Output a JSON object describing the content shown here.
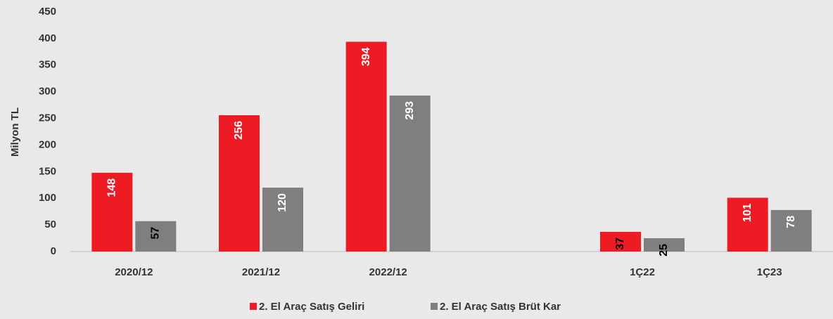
{
  "chart_data": {
    "type": "bar",
    "y_label": "Milyon TL",
    "categories": [
      "2020/12",
      "2021/12",
      "2022/12",
      null,
      "1Ç22",
      "1Ç23"
    ],
    "series": [
      {
        "name": "2. El Araç Satış Geliri",
        "color": "#ed1c24",
        "values": [
          148,
          256,
          394,
          null,
          37,
          101
        ]
      },
      {
        "name": "2. El Araç Satış Brüt Kar",
        "color": "#7f7f7f",
        "values": [
          57,
          120,
          293,
          null,
          25,
          78
        ]
      }
    ],
    "ylim": [
      0,
      450
    ],
    "yticks": [
      0,
      50,
      100,
      150,
      200,
      250,
      300,
      350,
      400,
      450
    ],
    "grid": false
  }
}
